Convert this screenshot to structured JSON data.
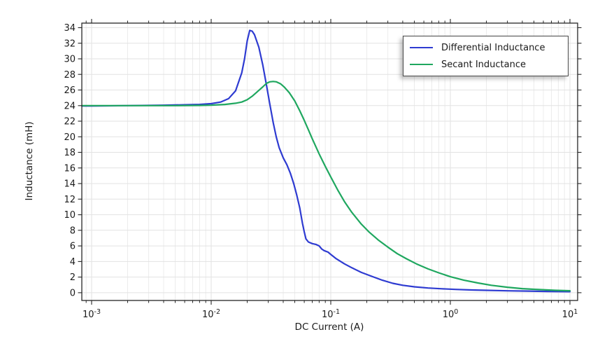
{
  "chart_data": {
    "type": "line",
    "title": "",
    "xlabel": "DC Current (A)",
    "ylabel": "Inductance (mH)",
    "x_scale": "log",
    "xlim": [
      0.000828,
      11.6
    ],
    "ylim": [
      -1.0,
      34.58
    ],
    "x_major_ticks": [
      0.001,
      0.01,
      0.1,
      1,
      10
    ],
    "x_tick_exponents": [
      -3,
      -2,
      -1,
      0,
      1
    ],
    "y_ticks": [
      0,
      2,
      4,
      6,
      8,
      10,
      12,
      14,
      16,
      18,
      20,
      22,
      24,
      26,
      28,
      30,
      32,
      34
    ],
    "grid": true,
    "legend_position": "top-right",
    "colors": {
      "axis": "#262626",
      "text": "#1a1a1a",
      "grid_major": "#e2e2e2",
      "grid_minor": "#ececec",
      "background": "#ffffff"
    },
    "series": [
      {
        "name": "Differential Inductance",
        "color": "#2e3bd1",
        "points": [
          [
            0.00083,
            23.95
          ],
          [
            0.001,
            23.95
          ],
          [
            0.002,
            24.0
          ],
          [
            0.004,
            24.05
          ],
          [
            0.006,
            24.1
          ],
          [
            0.008,
            24.15
          ],
          [
            0.01,
            24.25
          ],
          [
            0.012,
            24.45
          ],
          [
            0.014,
            24.9
          ],
          [
            0.016,
            25.9
          ],
          [
            0.018,
            28.2
          ],
          [
            0.019,
            30.0
          ],
          [
            0.02,
            32.3
          ],
          [
            0.021,
            33.65
          ],
          [
            0.022,
            33.55
          ],
          [
            0.023,
            33.1
          ],
          [
            0.025,
            31.5
          ],
          [
            0.027,
            29.2
          ],
          [
            0.029,
            26.6
          ],
          [
            0.031,
            24.1
          ],
          [
            0.033,
            21.8
          ],
          [
            0.035,
            20.0
          ],
          [
            0.037,
            18.6
          ],
          [
            0.04,
            17.3
          ],
          [
            0.043,
            16.4
          ],
          [
            0.046,
            15.3
          ],
          [
            0.049,
            14.0
          ],
          [
            0.052,
            12.5
          ],
          [
            0.055,
            10.9
          ],
          [
            0.058,
            8.9
          ],
          [
            0.06,
            7.8
          ],
          [
            0.062,
            6.9
          ],
          [
            0.065,
            6.5
          ],
          [
            0.07,
            6.3
          ],
          [
            0.075,
            6.2
          ],
          [
            0.08,
            6.0
          ],
          [
            0.084,
            5.6
          ],
          [
            0.088,
            5.4
          ],
          [
            0.095,
            5.2
          ],
          [
            0.1,
            4.9
          ],
          [
            0.11,
            4.4
          ],
          [
            0.13,
            3.7
          ],
          [
            0.15,
            3.2
          ],
          [
            0.18,
            2.6
          ],
          [
            0.22,
            2.1
          ],
          [
            0.27,
            1.6
          ],
          [
            0.33,
            1.2
          ],
          [
            0.4,
            0.95
          ],
          [
            0.5,
            0.75
          ],
          [
            0.65,
            0.6
          ],
          [
            0.85,
            0.5
          ],
          [
            1.1,
            0.42
          ],
          [
            1.5,
            0.35
          ],
          [
            2.0,
            0.3
          ],
          [
            3.0,
            0.24
          ],
          [
            4.5,
            0.2
          ],
          [
            6.5,
            0.16
          ],
          [
            10.0,
            0.13
          ]
        ]
      },
      {
        "name": "Secant Inductance",
        "color": "#1fa75f",
        "points": [
          [
            0.00083,
            24.0
          ],
          [
            0.002,
            24.0
          ],
          [
            0.005,
            24.0
          ],
          [
            0.008,
            24.02
          ],
          [
            0.01,
            24.05
          ],
          [
            0.013,
            24.15
          ],
          [
            0.016,
            24.3
          ],
          [
            0.018,
            24.45
          ],
          [
            0.02,
            24.75
          ],
          [
            0.022,
            25.2
          ],
          [
            0.025,
            25.95
          ],
          [
            0.027,
            26.4
          ],
          [
            0.029,
            26.85
          ],
          [
            0.031,
            27.05
          ],
          [
            0.033,
            27.1
          ],
          [
            0.035,
            27.05
          ],
          [
            0.038,
            26.8
          ],
          [
            0.041,
            26.35
          ],
          [
            0.045,
            25.65
          ],
          [
            0.05,
            24.6
          ],
          [
            0.055,
            23.35
          ],
          [
            0.06,
            22.1
          ],
          [
            0.065,
            20.9
          ],
          [
            0.07,
            19.75
          ],
          [
            0.08,
            17.8
          ],
          [
            0.09,
            16.2
          ],
          [
            0.1,
            14.85
          ],
          [
            0.115,
            13.1
          ],
          [
            0.13,
            11.7
          ],
          [
            0.15,
            10.3
          ],
          [
            0.18,
            8.8
          ],
          [
            0.21,
            7.75
          ],
          [
            0.25,
            6.75
          ],
          [
            0.3,
            5.85
          ],
          [
            0.36,
            5.0
          ],
          [
            0.43,
            4.35
          ],
          [
            0.52,
            3.7
          ],
          [
            0.65,
            3.05
          ],
          [
            0.8,
            2.55
          ],
          [
            1.0,
            2.05
          ],
          [
            1.3,
            1.6
          ],
          [
            1.7,
            1.25
          ],
          [
            2.2,
            0.95
          ],
          [
            3.0,
            0.7
          ],
          [
            4.0,
            0.52
          ],
          [
            5.5,
            0.4
          ],
          [
            7.5,
            0.3
          ],
          [
            10.0,
            0.25
          ]
        ]
      }
    ]
  }
}
